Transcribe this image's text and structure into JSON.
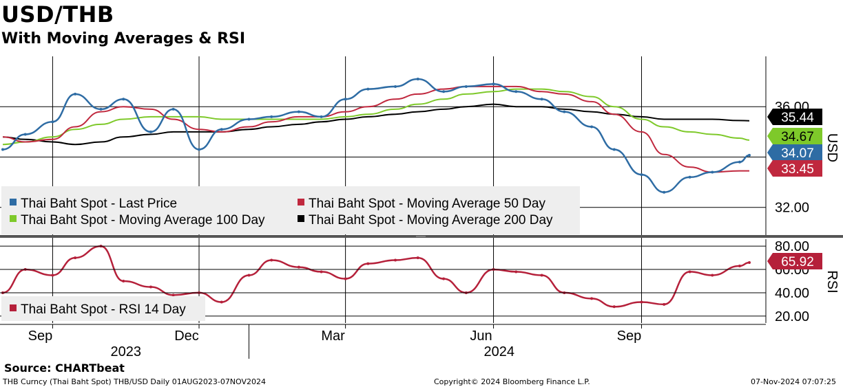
{
  "header": {
    "title": "USD/THB",
    "subtitle": "With Moving Averages & RSI"
  },
  "footer": {
    "source": "Source: CHARTbeat",
    "ticker": "THB Curncy (Thai Baht Spot) THB/USD  Daily 01AUG2023-07NOV2024",
    "copyright": "Copyright© 2024 Bloomberg Finance L.P.",
    "timestamp": "07-Nov-2024 07:07:25"
  },
  "colors": {
    "price": "#2e6ca4",
    "ma50": "#c0283e",
    "ma100": "#7ec92a",
    "ma200": "#000000",
    "rsi": "#b5203a",
    "legend_bg": "#eeeeee"
  },
  "chart_data": [
    {
      "type": "line",
      "panel": "price",
      "y_axis_label": "USD",
      "ylim": [
        30.9,
        38.0
      ],
      "y_ticks": [
        "36.00",
        "32.00"
      ],
      "x_tick_labels": [
        "Sep",
        "Dec",
        "Mar",
        "Jun",
        "Sep"
      ],
      "year_labels": [
        "2023",
        "2024"
      ],
      "x": [
        "2023-08-01",
        "2023-08-15",
        "2023-09-01",
        "2023-09-15",
        "2023-10-01",
        "2023-10-15",
        "2023-11-01",
        "2023-11-15",
        "2023-12-01",
        "2023-12-15",
        "2024-01-01",
        "2024-01-15",
        "2024-02-01",
        "2024-02-15",
        "2024-03-01",
        "2024-03-15",
        "2024-04-01",
        "2024-04-15",
        "2024-05-01",
        "2024-05-15",
        "2024-06-01",
        "2024-06-15",
        "2024-07-01",
        "2024-07-15",
        "2024-08-01",
        "2024-08-15",
        "2024-09-01",
        "2024-09-15",
        "2024-10-01",
        "2024-10-15",
        "2024-11-01",
        "2024-11-07"
      ],
      "series": [
        {
          "name": "Thai Baht Spot - Last Price",
          "values": [
            34.3,
            34.9,
            35.4,
            36.5,
            35.9,
            36.3,
            35.0,
            35.9,
            34.3,
            35.1,
            35.5,
            35.6,
            35.8,
            35.6,
            36.3,
            36.7,
            36.8,
            37.1,
            36.6,
            36.8,
            36.9,
            36.6,
            36.3,
            35.8,
            35.2,
            34.3,
            33.3,
            32.6,
            33.2,
            33.4,
            33.8,
            34.07
          ]
        },
        {
          "name": "Thai Baht Spot - Moving Average 50 Day",
          "values": [
            34.8,
            34.6,
            34.7,
            35.2,
            35.8,
            36.0,
            35.9,
            35.5,
            35.1,
            35.0,
            35.2,
            35.4,
            35.6,
            35.6,
            35.8,
            36.0,
            36.3,
            36.5,
            36.7,
            36.8,
            36.8,
            36.8,
            36.6,
            36.5,
            36.2,
            35.7,
            35.0,
            34.1,
            33.6,
            33.4,
            33.45,
            33.45
          ]
        },
        {
          "name": "Thai Baht Spot - Moving Average 100 Day",
          "values": [
            34.5,
            34.6,
            34.8,
            35.1,
            35.3,
            35.5,
            35.6,
            35.6,
            35.6,
            35.5,
            35.5,
            35.5,
            35.5,
            35.5,
            35.6,
            35.7,
            35.9,
            36.1,
            36.3,
            36.5,
            36.6,
            36.7,
            36.7,
            36.6,
            36.4,
            36.0,
            35.5,
            35.2,
            35.0,
            34.9,
            34.75,
            34.67
          ]
        },
        {
          "name": "Thai Baht Spot - Moving Average 200 Day",
          "values": [
            34.8,
            34.7,
            34.6,
            34.5,
            34.6,
            34.8,
            34.9,
            35.0,
            35.0,
            35.0,
            35.1,
            35.2,
            35.3,
            35.4,
            35.5,
            35.6,
            35.7,
            35.8,
            35.9,
            36.0,
            36.1,
            36.0,
            36.0,
            35.9,
            35.8,
            35.7,
            35.6,
            35.5,
            35.5,
            35.5,
            35.45,
            35.44
          ]
        }
      ],
      "last_values": {
        "ma200": "35.44",
        "ma100": "34.67",
        "price": "34.07",
        "ma50": "33.45"
      },
      "legend": [
        "Thai Baht Spot - Last Price",
        "Thai Baht Spot - Moving Average 50 Day",
        "Thai Baht Spot - Moving Average 100 Day",
        "Thai Baht Spot - Moving Average 200 Day"
      ],
      "legend_position": "bottom-left",
      "grid": true
    },
    {
      "type": "line",
      "panel": "rsi",
      "y_axis_label": "RSI",
      "ylim": [
        14,
        86
      ],
      "y_ticks": [
        "80.00",
        "60.00",
        "40.00",
        "20.00"
      ],
      "x": [
        "2023-08-01",
        "2023-08-15",
        "2023-09-01",
        "2023-09-15",
        "2023-10-01",
        "2023-10-15",
        "2023-11-01",
        "2023-11-15",
        "2023-12-01",
        "2023-12-15",
        "2024-01-01",
        "2024-01-15",
        "2024-02-01",
        "2024-02-15",
        "2024-03-01",
        "2024-03-15",
        "2024-04-01",
        "2024-04-15",
        "2024-05-01",
        "2024-05-15",
        "2024-06-01",
        "2024-06-15",
        "2024-07-01",
        "2024-07-15",
        "2024-08-01",
        "2024-08-15",
        "2024-09-01",
        "2024-09-15",
        "2024-10-01",
        "2024-10-15",
        "2024-11-01",
        "2024-11-07"
      ],
      "series": [
        {
          "name": "Thai Baht Spot - RSI 14 Day",
          "values": [
            40,
            60,
            55,
            70,
            80,
            50,
            45,
            38,
            40,
            32,
            55,
            68,
            62,
            58,
            52,
            65,
            68,
            70,
            52,
            40,
            60,
            58,
            55,
            40,
            35,
            28,
            32,
            30,
            58,
            55,
            63,
            65.92
          ]
        }
      ],
      "last_value": "65.92",
      "legend": [
        "Thai Baht Spot - RSI 14 Day"
      ],
      "legend_position": "bottom-left",
      "grid": true
    }
  ]
}
